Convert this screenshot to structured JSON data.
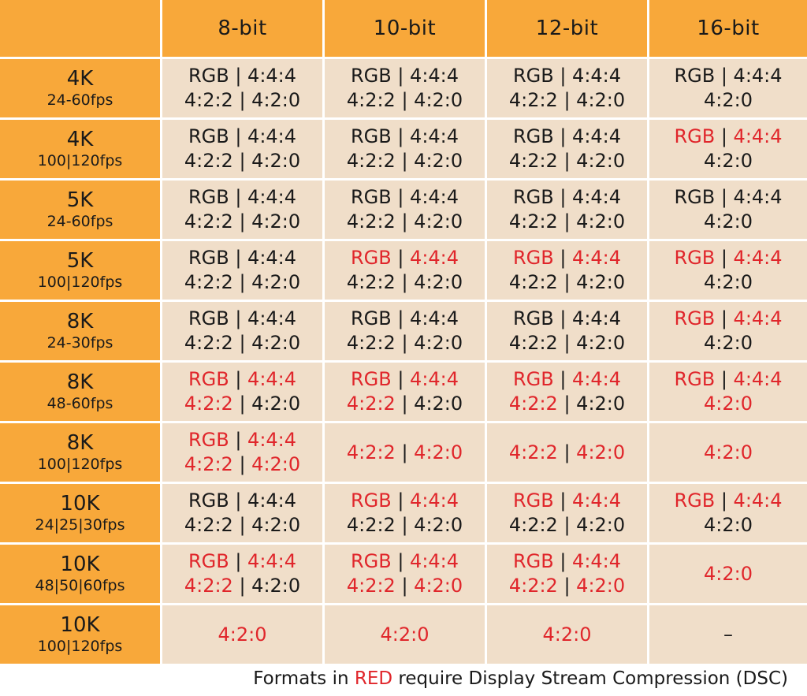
{
  "colors": {
    "header_bg": "#f8a83a",
    "cell_bg": "#f0dec9",
    "red": "#e0262b",
    "text": "#1a1a1a"
  },
  "columns": [
    "8-bit",
    "10-bit",
    "12-bit",
    "16-bit"
  ],
  "rows": [
    {
      "res": "4K",
      "fps": "24-60fps",
      "cells": [
        [
          [
            {
              "t": "RGB",
              "r": false
            },
            {
              "t": " | ",
              "r": false
            },
            {
              "t": "4:4:4",
              "r": false
            }
          ],
          [
            {
              "t": "4:2:2",
              "r": false
            },
            {
              "t": " | ",
              "r": false
            },
            {
              "t": "4:2:0",
              "r": false
            }
          ]
        ],
        [
          [
            {
              "t": "RGB",
              "r": false
            },
            {
              "t": " | ",
              "r": false
            },
            {
              "t": "4:4:4",
              "r": false
            }
          ],
          [
            {
              "t": "4:2:2",
              "r": false
            },
            {
              "t": " | ",
              "r": false
            },
            {
              "t": "4:2:0",
              "r": false
            }
          ]
        ],
        [
          [
            {
              "t": "RGB",
              "r": false
            },
            {
              "t": " | ",
              "r": false
            },
            {
              "t": "4:4:4",
              "r": false
            }
          ],
          [
            {
              "t": "4:2:2",
              "r": false
            },
            {
              "t": " | ",
              "r": false
            },
            {
              "t": "4:2:0",
              "r": false
            }
          ]
        ],
        [
          [
            {
              "t": "RGB",
              "r": false
            },
            {
              "t": " | ",
              "r": false
            },
            {
              "t": "4:4:4",
              "r": false
            }
          ],
          [
            {
              "t": "4:2:0",
              "r": false
            }
          ]
        ]
      ]
    },
    {
      "res": "4K",
      "fps": "100|120fps",
      "cells": [
        [
          [
            {
              "t": "RGB",
              "r": false
            },
            {
              "t": " | ",
              "r": false
            },
            {
              "t": "4:4:4",
              "r": false
            }
          ],
          [
            {
              "t": "4:2:2",
              "r": false
            },
            {
              "t": " | ",
              "r": false
            },
            {
              "t": "4:2:0",
              "r": false
            }
          ]
        ],
        [
          [
            {
              "t": "RGB",
              "r": false
            },
            {
              "t": " | ",
              "r": false
            },
            {
              "t": "4:4:4",
              "r": false
            }
          ],
          [
            {
              "t": "4:2:2",
              "r": false
            },
            {
              "t": " | ",
              "r": false
            },
            {
              "t": "4:2:0",
              "r": false
            }
          ]
        ],
        [
          [
            {
              "t": "RGB",
              "r": false
            },
            {
              "t": " | ",
              "r": false
            },
            {
              "t": "4:4:4",
              "r": false
            }
          ],
          [
            {
              "t": "4:2:2",
              "r": false
            },
            {
              "t": " | ",
              "r": false
            },
            {
              "t": "4:2:0",
              "r": false
            }
          ]
        ],
        [
          [
            {
              "t": "RGB",
              "r": true
            },
            {
              "t": " | ",
              "r": false
            },
            {
              "t": "4:4:4",
              "r": true
            }
          ],
          [
            {
              "t": "4:2:0",
              "r": false
            }
          ]
        ]
      ]
    },
    {
      "res": "5K",
      "fps": "24-60fps",
      "cells": [
        [
          [
            {
              "t": "RGB",
              "r": false
            },
            {
              "t": " | ",
              "r": false
            },
            {
              "t": "4:4:4",
              "r": false
            }
          ],
          [
            {
              "t": "4:2:2",
              "r": false
            },
            {
              "t": " | ",
              "r": false
            },
            {
              "t": "4:2:0",
              "r": false
            }
          ]
        ],
        [
          [
            {
              "t": "RGB",
              "r": false
            },
            {
              "t": " | ",
              "r": false
            },
            {
              "t": "4:4:4",
              "r": false
            }
          ],
          [
            {
              "t": "4:2:2",
              "r": false
            },
            {
              "t": " | ",
              "r": false
            },
            {
              "t": "4:2:0",
              "r": false
            }
          ]
        ],
        [
          [
            {
              "t": "RGB",
              "r": false
            },
            {
              "t": " | ",
              "r": false
            },
            {
              "t": "4:4:4",
              "r": false
            }
          ],
          [
            {
              "t": "4:2:2",
              "r": false
            },
            {
              "t": " | ",
              "r": false
            },
            {
              "t": "4:2:0",
              "r": false
            }
          ]
        ],
        [
          [
            {
              "t": "RGB",
              "r": false
            },
            {
              "t": " | ",
              "r": false
            },
            {
              "t": "4:4:4",
              "r": false
            }
          ],
          [
            {
              "t": "4:2:0",
              "r": false
            }
          ]
        ]
      ]
    },
    {
      "res": "5K",
      "fps": "100|120fps",
      "cells": [
        [
          [
            {
              "t": "RGB",
              "r": false
            },
            {
              "t": " | ",
              "r": false
            },
            {
              "t": "4:4:4",
              "r": false
            }
          ],
          [
            {
              "t": "4:2:2",
              "r": false
            },
            {
              "t": " | ",
              "r": false
            },
            {
              "t": "4:2:0",
              "r": false
            }
          ]
        ],
        [
          [
            {
              "t": "RGB",
              "r": true
            },
            {
              "t": " | ",
              "r": false
            },
            {
              "t": "4:4:4",
              "r": true
            }
          ],
          [
            {
              "t": "4:2:2",
              "r": false
            },
            {
              "t": " | ",
              "r": false
            },
            {
              "t": "4:2:0",
              "r": false
            }
          ]
        ],
        [
          [
            {
              "t": "RGB",
              "r": true
            },
            {
              "t": " | ",
              "r": false
            },
            {
              "t": "4:4:4",
              "r": true
            }
          ],
          [
            {
              "t": "4:2:2",
              "r": false
            },
            {
              "t": " | ",
              "r": false
            },
            {
              "t": "4:2:0",
              "r": false
            }
          ]
        ],
        [
          [
            {
              "t": "RGB",
              "r": true
            },
            {
              "t": " | ",
              "r": false
            },
            {
              "t": "4:4:4",
              "r": true
            }
          ],
          [
            {
              "t": "4:2:0",
              "r": false
            }
          ]
        ]
      ]
    },
    {
      "res": "8K",
      "fps": "24-30fps",
      "cells": [
        [
          [
            {
              "t": "RGB",
              "r": false
            },
            {
              "t": " | ",
              "r": false
            },
            {
              "t": "4:4:4",
              "r": false
            }
          ],
          [
            {
              "t": "4:2:2",
              "r": false
            },
            {
              "t": " | ",
              "r": false
            },
            {
              "t": "4:2:0",
              "r": false
            }
          ]
        ],
        [
          [
            {
              "t": "RGB",
              "r": false
            },
            {
              "t": " | ",
              "r": false
            },
            {
              "t": "4:4:4",
              "r": false
            }
          ],
          [
            {
              "t": "4:2:2",
              "r": false
            },
            {
              "t": " | ",
              "r": false
            },
            {
              "t": "4:2:0",
              "r": false
            }
          ]
        ],
        [
          [
            {
              "t": "RGB",
              "r": false
            },
            {
              "t": " | ",
              "r": false
            },
            {
              "t": "4:4:4",
              "r": false
            }
          ],
          [
            {
              "t": "4:2:2",
              "r": false
            },
            {
              "t": " | ",
              "r": false
            },
            {
              "t": "4:2:0",
              "r": false
            }
          ]
        ],
        [
          [
            {
              "t": "RGB",
              "r": true
            },
            {
              "t": " | ",
              "r": false
            },
            {
              "t": "4:4:4",
              "r": true
            }
          ],
          [
            {
              "t": "4:2:0",
              "r": false
            }
          ]
        ]
      ]
    },
    {
      "res": "8K",
      "fps": "48-60fps",
      "cells": [
        [
          [
            {
              "t": "RGB",
              "r": true
            },
            {
              "t": " | ",
              "r": false
            },
            {
              "t": "4:4:4",
              "r": true
            }
          ],
          [
            {
              "t": "4:2:2",
              "r": true
            },
            {
              "t": " | ",
              "r": false
            },
            {
              "t": "4:2:0",
              "r": false
            }
          ]
        ],
        [
          [
            {
              "t": "RGB",
              "r": true
            },
            {
              "t": " | ",
              "r": false
            },
            {
              "t": "4:4:4",
              "r": true
            }
          ],
          [
            {
              "t": "4:2:2",
              "r": true
            },
            {
              "t": " | ",
              "r": false
            },
            {
              "t": "4:2:0",
              "r": false
            }
          ]
        ],
        [
          [
            {
              "t": "RGB",
              "r": true
            },
            {
              "t": " | ",
              "r": false
            },
            {
              "t": "4:4:4",
              "r": true
            }
          ],
          [
            {
              "t": "4:2:2",
              "r": true
            },
            {
              "t": " | ",
              "r": false
            },
            {
              "t": "4:2:0",
              "r": false
            }
          ]
        ],
        [
          [
            {
              "t": "RGB",
              "r": true
            },
            {
              "t": " | ",
              "r": false
            },
            {
              "t": "4:4:4",
              "r": true
            }
          ],
          [
            {
              "t": "4:2:0",
              "r": true
            }
          ]
        ]
      ]
    },
    {
      "res": "8K",
      "fps": "100|120fps",
      "cells": [
        [
          [
            {
              "t": "RGB",
              "r": true
            },
            {
              "t": " | ",
              "r": false
            },
            {
              "t": "4:4:4",
              "r": true
            }
          ],
          [
            {
              "t": "4:2:2",
              "r": true
            },
            {
              "t": " | ",
              "r": false
            },
            {
              "t": "4:2:0",
              "r": true
            }
          ]
        ],
        [
          [
            {
              "t": "4:2:2",
              "r": true
            },
            {
              "t": " | ",
              "r": false
            },
            {
              "t": "4:2:0",
              "r": true
            }
          ]
        ],
        [
          [
            {
              "t": "4:2:2",
              "r": true
            },
            {
              "t": " | ",
              "r": false
            },
            {
              "t": "4:2:0",
              "r": true
            }
          ]
        ],
        [
          [
            {
              "t": "4:2:0",
              "r": true
            }
          ]
        ]
      ]
    },
    {
      "res": "10K",
      "fps": "24|25|30fps",
      "cells": [
        [
          [
            {
              "t": "RGB",
              "r": false
            },
            {
              "t": " | ",
              "r": false
            },
            {
              "t": "4:4:4",
              "r": false
            }
          ],
          [
            {
              "t": "4:2:2",
              "r": false
            },
            {
              "t": " | ",
              "r": false
            },
            {
              "t": "4:2:0",
              "r": false
            }
          ]
        ],
        [
          [
            {
              "t": "RGB",
              "r": true
            },
            {
              "t": " | ",
              "r": false
            },
            {
              "t": "4:4:4",
              "r": true
            }
          ],
          [
            {
              "t": "4:2:2",
              "r": false
            },
            {
              "t": " | ",
              "r": false
            },
            {
              "t": "4:2:0",
              "r": false
            }
          ]
        ],
        [
          [
            {
              "t": "RGB",
              "r": true
            },
            {
              "t": " | ",
              "r": false
            },
            {
              "t": "4:4:4",
              "r": true
            }
          ],
          [
            {
              "t": "4:2:2",
              "r": false
            },
            {
              "t": " | ",
              "r": false
            },
            {
              "t": "4:2:0",
              "r": false
            }
          ]
        ],
        [
          [
            {
              "t": "RGB",
              "r": true
            },
            {
              "t": " | ",
              "r": false
            },
            {
              "t": "4:4:4",
              "r": true
            }
          ],
          [
            {
              "t": "4:2:0",
              "r": false
            }
          ]
        ]
      ]
    },
    {
      "res": "10K",
      "fps": "48|50|60fps",
      "cells": [
        [
          [
            {
              "t": "RGB",
              "r": true
            },
            {
              "t": " | ",
              "r": false
            },
            {
              "t": "4:4:4",
              "r": true
            }
          ],
          [
            {
              "t": "4:2:2",
              "r": true
            },
            {
              "t": " | ",
              "r": false
            },
            {
              "t": "4:2:0",
              "r": false
            }
          ]
        ],
        [
          [
            {
              "t": "RGB",
              "r": true
            },
            {
              "t": " | ",
              "r": false
            },
            {
              "t": "4:4:4",
              "r": true
            }
          ],
          [
            {
              "t": "4:2:2",
              "r": true
            },
            {
              "t": " | ",
              "r": false
            },
            {
              "t": "4:2:0",
              "r": true
            }
          ]
        ],
        [
          [
            {
              "t": "RGB",
              "r": true
            },
            {
              "t": " | ",
              "r": false
            },
            {
              "t": "4:4:4",
              "r": true
            }
          ],
          [
            {
              "t": "4:2:2",
              "r": true
            },
            {
              "t": " | ",
              "r": false
            },
            {
              "t": "4:2:0",
              "r": true
            }
          ]
        ],
        [
          [
            {
              "t": "4:2:0",
              "r": true
            }
          ]
        ]
      ]
    },
    {
      "res": "10K",
      "fps": "100|120fps",
      "cells": [
        [
          [
            {
              "t": "4:2:0",
              "r": true
            }
          ]
        ],
        [
          [
            {
              "t": "4:2:0",
              "r": true
            }
          ]
        ],
        [
          [
            {
              "t": "4:2:0",
              "r": true
            }
          ]
        ],
        [
          [
            {
              "t": "–",
              "r": false
            }
          ]
        ]
      ]
    }
  ],
  "footer": {
    "prefix": "Formats in ",
    "highlight": "RED",
    "suffix": " require Display Stream Compression (DSC)"
  }
}
